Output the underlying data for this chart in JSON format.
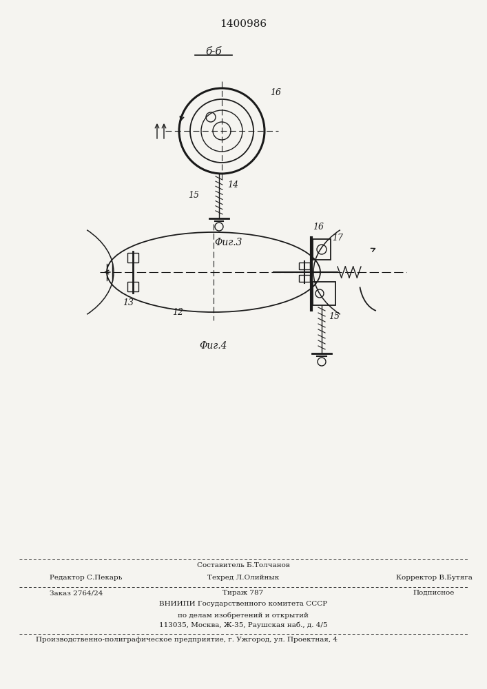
{
  "patent_number": "1400986",
  "section_label": "б-б",
  "fig3_label": "Φиг.3",
  "fig4_label": "Φиг.4",
  "bg_color": "#f5f4f0",
  "line_color": "#1a1a1a",
  "label_16_fig3": "16",
  "label_15_fig3": "15",
  "label_14_fig3": "14",
  "label_12": "12",
  "label_13": "13",
  "label_16_fig4": "16",
  "label_17_fig4": "17",
  "label_15_fig4": "15",
  "footer_line1": "Составитель Б.Толчанов",
  "footer_line2_left": "Редактор С.Пекарь",
  "footer_line2_mid": "Техред Л.Олийнык",
  "footer_line2_right": "Корректор В.Бутяга",
  "footer_line3_left": "Заказ 2764/24",
  "footer_line3_mid": "Тираж 787",
  "footer_line3_right": "Подписное",
  "footer_line4": "ВНИИПИ Государственного комитета СССР",
  "footer_line5": "по делам изобретений и открытий",
  "footer_line6": "113035, Москва, Ж-35, Раушская наб., д. 4/5",
  "footer_bottom": "Производственно-полиграфическое предприятие, г. Ужгород, ул. Проектная, 4"
}
